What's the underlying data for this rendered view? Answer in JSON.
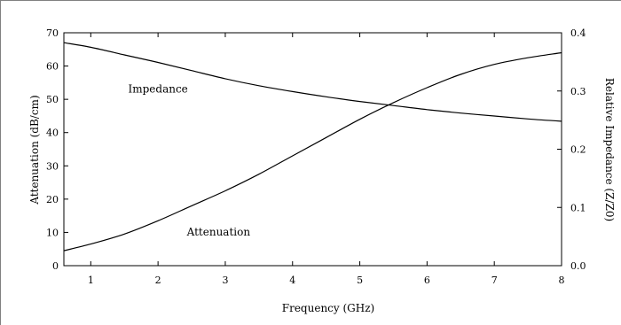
{
  "chart_data": {
    "type": "line",
    "xlabel": "Frequency (GHz)",
    "ylabel_left": "Attenuation (dB/cm)",
    "ylabel_right": "Relative Impedance (Z/Z0)",
    "xlim": [
      0.6,
      8
    ],
    "ylim_left": [
      0,
      70
    ],
    "ylim_right": [
      0,
      0.4
    ],
    "x_ticks": [
      1,
      2,
      3,
      4,
      5,
      6,
      7,
      8
    ],
    "y_ticks_left": [
      0,
      10,
      20,
      30,
      40,
      50,
      60,
      70
    ],
    "y_ticks_right": [
      0.0,
      0.1,
      0.2,
      0.3,
      0.4
    ],
    "grid": false,
    "legend": "none",
    "annotations": [
      {
        "text": "Impedance",
        "x": 2.0,
        "y": 52,
        "axis": "left"
      },
      {
        "text": "Attenuation",
        "x": 2.9,
        "y": 9,
        "axis": "left"
      }
    ],
    "series": [
      {
        "name": "Attenuation",
        "axis": "left",
        "x": [
          0.6,
          1.0,
          1.5,
          2.0,
          2.5,
          3.0,
          3.5,
          4.0,
          4.5,
          5.0,
          5.5,
          6.0,
          6.5,
          7.0,
          7.5,
          8.0
        ],
        "y": [
          4.5,
          6.5,
          9.5,
          13.5,
          18.0,
          22.5,
          27.5,
          33.0,
          38.5,
          44.0,
          49.0,
          53.5,
          57.5,
          60.5,
          62.5,
          64.0
        ]
      },
      {
        "name": "Impedance",
        "axis": "right",
        "x": [
          0.6,
          1.0,
          1.5,
          2.0,
          2.5,
          3.0,
          3.5,
          4.0,
          4.5,
          5.0,
          5.5,
          6.0,
          6.5,
          7.0,
          7.5,
          8.0
        ],
        "y": [
          0.383,
          0.375,
          0.362,
          0.349,
          0.335,
          0.321,
          0.309,
          0.299,
          0.29,
          0.282,
          0.275,
          0.268,
          0.262,
          0.257,
          0.252,
          0.248
        ]
      }
    ]
  }
}
